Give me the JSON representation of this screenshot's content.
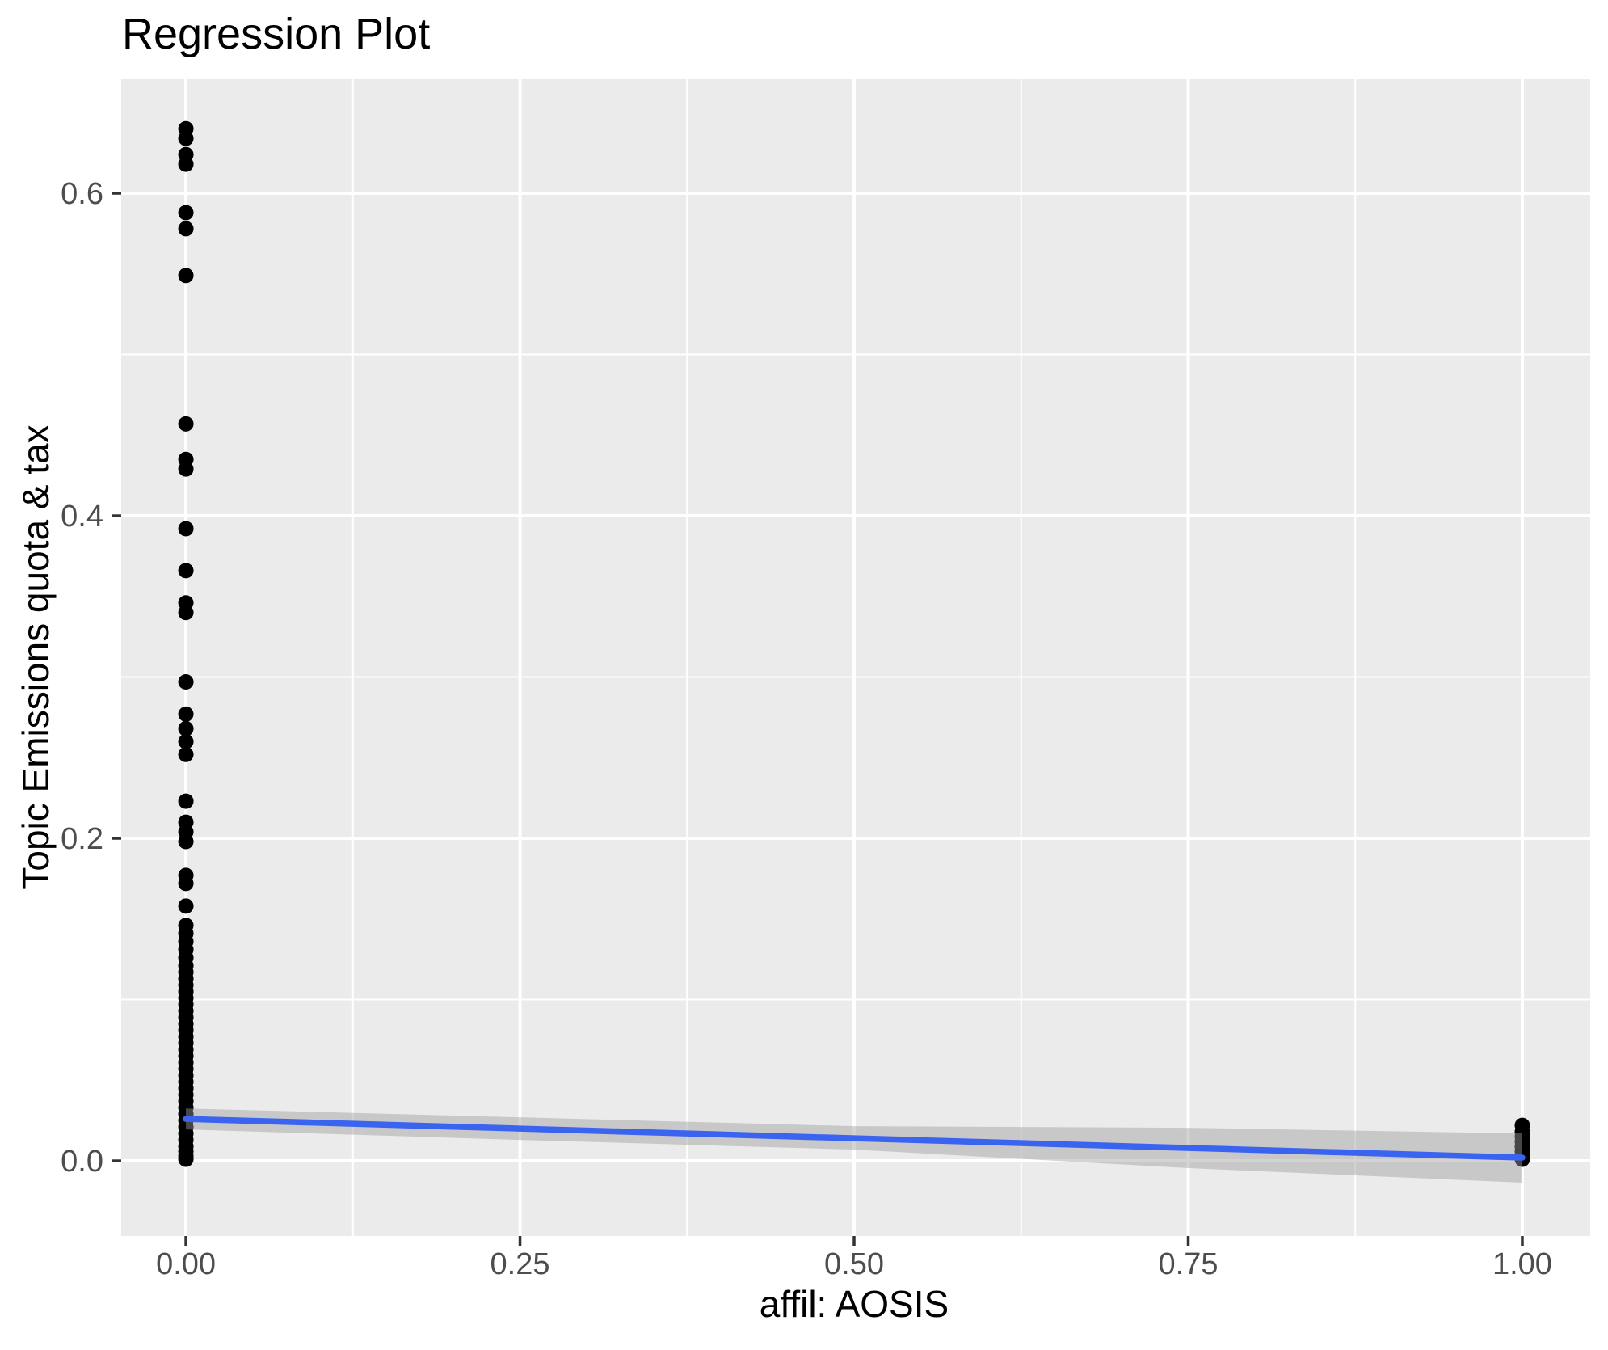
{
  "chart_data": {
    "type": "scatter",
    "title": "Regression Plot",
    "xlabel": "affil: AOSIS",
    "ylabel": "Topic Emissions quota & tax",
    "xlim": [
      -0.0484,
      1.0508
    ],
    "ylim": [
      -0.0466,
      0.6707
    ],
    "grid": "major+minor",
    "legend_position": "none",
    "x_ticks": {
      "values": [
        0,
        0.25,
        0.5,
        0.75,
        1.0
      ],
      "labels": [
        "0.00",
        "0.25",
        "0.50",
        "0.75",
        "1.00"
      ]
    },
    "y_ticks": {
      "values": [
        0,
        0.2,
        0.4,
        0.6
      ],
      "labels": [
        "0.0",
        "0.2",
        "0.4",
        "0.6"
      ]
    },
    "x_minor_ticks": [
      0.125,
      0.375,
      0.625,
      0.875
    ],
    "y_minor_ticks": [
      0.1,
      0.3,
      0.5
    ],
    "series": [
      {
        "name": "observations-affil-0",
        "x": 0,
        "y": [
          0.64,
          0.634,
          0.624,
          0.618,
          0.588,
          0.578,
          0.549,
          0.457,
          0.435,
          0.429,
          0.392,
          0.366,
          0.346,
          0.34,
          0.297,
          0.277,
          0.268,
          0.26,
          0.252,
          0.223,
          0.21,
          0.204,
          0.198,
          0.177,
          0.172,
          0.158,
          0.146,
          0.141,
          0.136,
          0.131,
          0.126,
          0.121,
          0.117,
          0.113,
          0.109,
          0.105,
          0.101,
          0.097,
          0.093,
          0.089,
          0.085,
          0.081,
          0.077,
          0.073,
          0.069,
          0.065,
          0.061,
          0.057,
          0.053,
          0.049,
          0.045,
          0.041,
          0.037,
          0.033,
          0.029,
          0.025,
          0.021,
          0.017,
          0.013,
          0.009,
          0.006,
          0.003,
          0.001
        ]
      },
      {
        "name": "observations-affil-1",
        "x": 1,
        "y": [
          0.022,
          0.018,
          0.015,
          0.012,
          0.009,
          0.006,
          0.003,
          0.001
        ]
      }
    ],
    "regression_line": {
      "x": [
        0,
        1
      ],
      "y": [
        0.026,
        0.002
      ]
    },
    "confidence_band": {
      "x": [
        0,
        0.25,
        0.5,
        0.75,
        1.0
      ],
      "upper": [
        0.0325,
        0.027,
        0.0215,
        0.0205,
        0.017
      ],
      "lower": [
        0.0195,
        0.013,
        0.007,
        -0.0045,
        -0.0135
      ]
    },
    "colors": {
      "point": "#000000",
      "line": "#3A64EF",
      "band": "#9E9E9E",
      "panel_bg": "#EBEBEB",
      "grid": "#FFFFFF",
      "tick_label": "#4D4D4D",
      "tick_mark": "#333333",
      "title": "#000000",
      "background": "#FFFFFF"
    },
    "point_radius": 9.5,
    "line_width": 7.5
  }
}
